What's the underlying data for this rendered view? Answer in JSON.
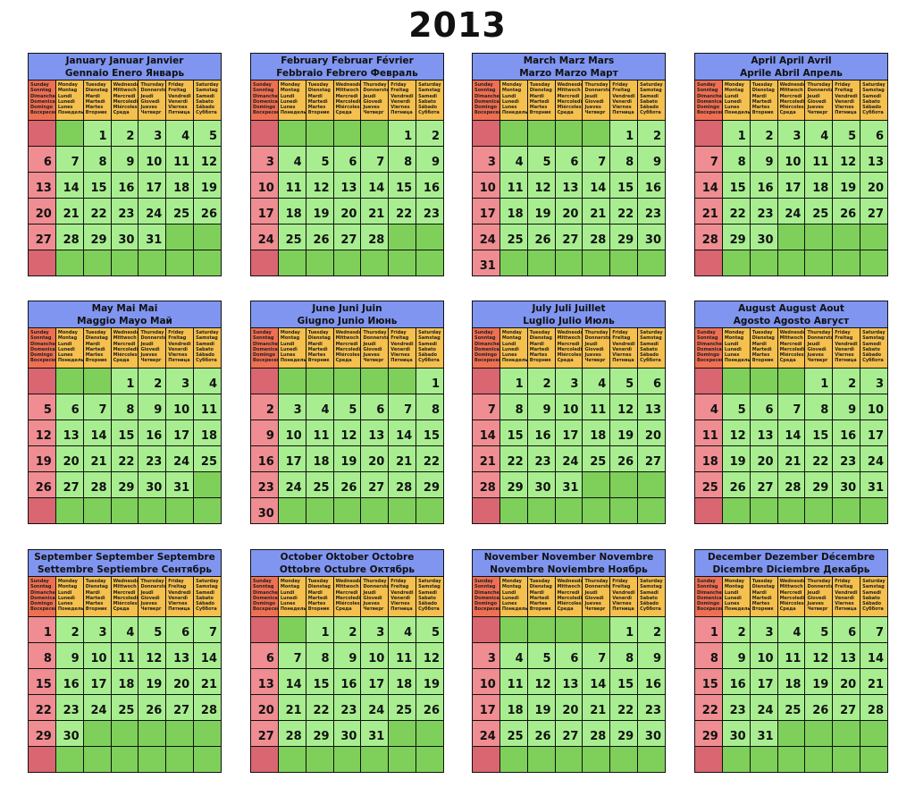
{
  "year": "2013",
  "dow_labels": [
    [
      "Sunday",
      "Sonntag",
      "Dimanche",
      "Domenica",
      "Domingo",
      "Воскресенье"
    ],
    [
      "Monday",
      "Montag",
      "Lundi",
      "Lunedì",
      "Lunes",
      "Понедельник"
    ],
    [
      "Tuesday",
      "Dienstag",
      "Mardi",
      "Martedì",
      "Martes",
      "Вторник"
    ],
    [
      "Wednesday",
      "Mittwoch",
      "Mercredi",
      "Mercoledì",
      "Miércoles",
      "Среда"
    ],
    [
      "Thursday",
      "Donnerstag",
      "Jeudi",
      "Giovedì",
      "Jueves",
      "Четверг"
    ],
    [
      "Friday",
      "Freitag",
      "Vendredi",
      "Venerdì",
      "Viernes",
      "Пятница"
    ],
    [
      "Saturday",
      "Samstag",
      "Samedi",
      "Sabato",
      "Sábado",
      "Суббота"
    ]
  ],
  "months": [
    {
      "title1": "January Januar Janvier",
      "title2": "Gennaio Enero Январь",
      "first": 2,
      "days": 31
    },
    {
      "title1": "February Februar Février",
      "title2": "Febbraio Febrero Февраль",
      "first": 5,
      "days": 28
    },
    {
      "title1": "March Marz Mars",
      "title2": "Marzo Marzo Март",
      "first": 5,
      "days": 31
    },
    {
      "title1": "April April Avril",
      "title2": "Aprile Abril Апрель",
      "first": 1,
      "days": 30
    },
    {
      "title1": "May Mai Mai",
      "title2": "Maggio Mayo Май",
      "first": 3,
      "days": 31
    },
    {
      "title1": "June Juni Juin",
      "title2": "Giugno Junio Июнь",
      "first": 6,
      "days": 30
    },
    {
      "title1": "July Juli Juillet",
      "title2": "Luglio Julio Июль",
      "first": 1,
      "days": 31
    },
    {
      "title1": "August August Aout",
      "title2": "Agosto Agosto Август",
      "first": 4,
      "days": 31
    },
    {
      "title1": "September September Septembre",
      "title2": "Settembre Septiembre Сентябрь",
      "first": 0,
      "days": 30
    },
    {
      "title1": "October Oktober Octobre",
      "title2": "Ottobre Octubre Октябрь",
      "first": 2,
      "days": 31
    },
    {
      "title1": "November November Novembre",
      "title2": "Novembre Noviembre Ноябрь",
      "first": 5,
      "days": 30
    },
    {
      "title1": "December Dezember Décembre",
      "title2": "Dicembre Diciembre Декабрь",
      "first": 0,
      "days": 31
    }
  ],
  "colors": {
    "title_bg": "#7f95f0",
    "weekday_header": "#f5c04e",
    "sunday_header": "#ef6f52",
    "day_cell": "#a8ee90",
    "sunday_cell": "#ef8d92",
    "empty_cell": "#7ed05a",
    "empty_sunday": "#d96670"
  }
}
